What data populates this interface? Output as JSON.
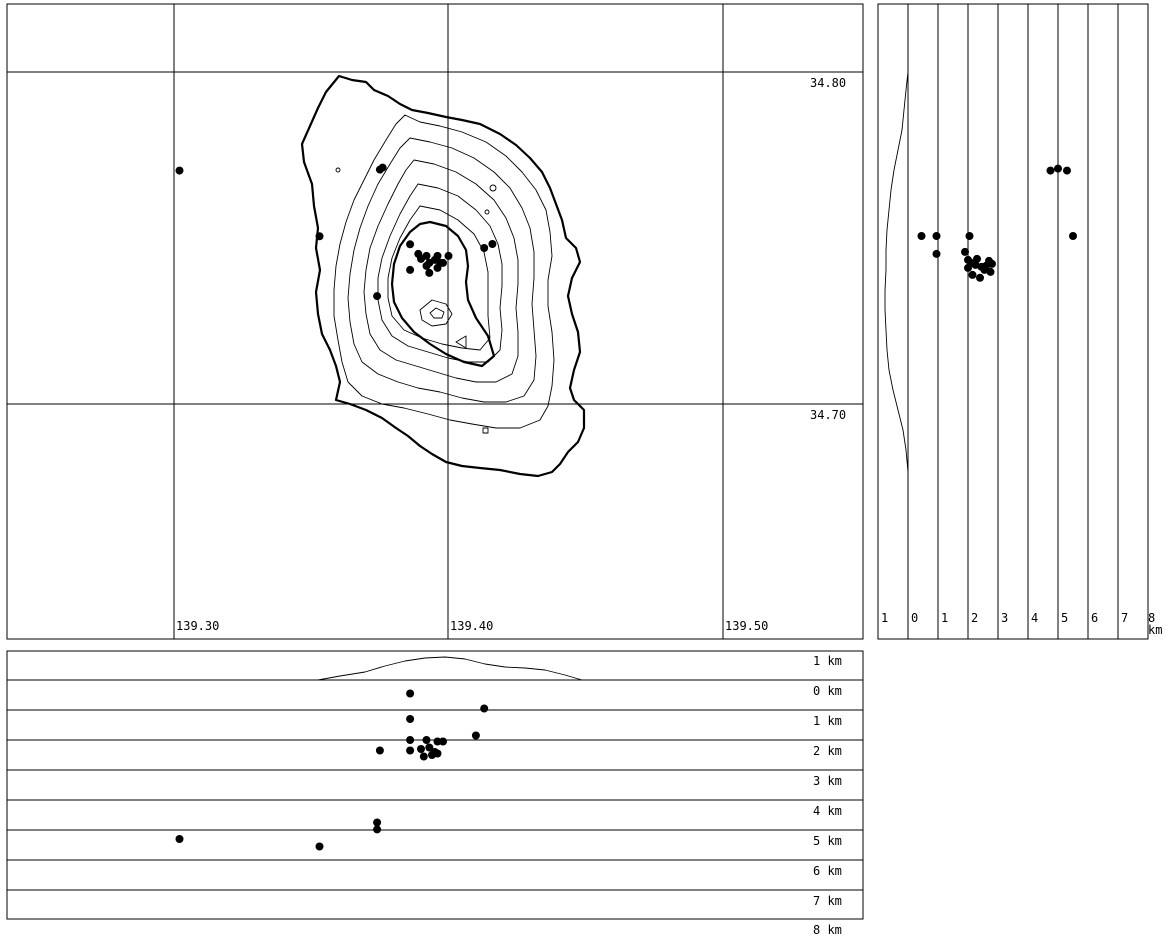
{
  "map": {
    "lat_labels": [
      "34.80",
      "34.70"
    ],
    "lon_labels": [
      "139.30",
      "139.40",
      "139.50"
    ],
    "epicenters": [
      {
        "lon": 139.302,
        "lat": 34.7703
      },
      {
        "lon": 139.353,
        "lat": 34.7505
      },
      {
        "lon": 139.375,
        "lat": 34.7706
      },
      {
        "lon": 139.376,
        "lat": 34.7712
      },
      {
        "lon": 139.386,
        "lat": 34.7481
      },
      {
        "lon": 139.386,
        "lat": 34.7404
      },
      {
        "lon": 139.389,
        "lat": 34.7452
      },
      {
        "lon": 139.39,
        "lat": 34.7437
      },
      {
        "lon": 139.392,
        "lat": 34.7416
      },
      {
        "lon": 139.393,
        "lat": 34.7425
      },
      {
        "lon": 139.395,
        "lat": 34.7434
      },
      {
        "lon": 139.396,
        "lat": 34.741
      },
      {
        "lon": 139.397,
        "lat": 34.7425
      },
      {
        "lon": 139.393,
        "lat": 34.7395
      },
      {
        "lon": 139.392,
        "lat": 34.7446
      },
      {
        "lon": 139.396,
        "lat": 34.7446
      },
      {
        "lon": 139.398,
        "lat": 34.7425
      },
      {
        "lon": 139.4,
        "lat": 34.7446
      },
      {
        "lon": 139.374,
        "lat": 34.7325
      },
      {
        "lon": 139.413,
        "lat": 34.747
      },
      {
        "lon": 139.416,
        "lat": 34.7482
      }
    ]
  },
  "ns_section": {
    "depth_labels": [
      "1",
      "0",
      "1",
      "2",
      "3",
      "4",
      "5",
      "6",
      "7",
      "8"
    ],
    "unit": "km",
    "hypocenters": [
      {
        "depth": 0.45,
        "lat": 34.7506
      },
      {
        "depth": 0.95,
        "lat": 34.7506
      },
      {
        "depth": 0.95,
        "lat": 34.7452
      },
      {
        "depth": 2.05,
        "lat": 34.7506
      },
      {
        "depth": 1.9,
        "lat": 34.7458
      },
      {
        "depth": 2.0,
        "lat": 34.7434
      },
      {
        "depth": 2.1,
        "lat": 34.7425
      },
      {
        "depth": 2.3,
        "lat": 34.7437
      },
      {
        "depth": 2.25,
        "lat": 34.7419
      },
      {
        "depth": 2.45,
        "lat": 34.7413
      },
      {
        "depth": 2.6,
        "lat": 34.7416
      },
      {
        "depth": 2.75,
        "lat": 34.7398
      },
      {
        "depth": 2.7,
        "lat": 34.7431
      },
      {
        "depth": 2.0,
        "lat": 34.741
      },
      {
        "depth": 2.15,
        "lat": 34.7389
      },
      {
        "depth": 2.4,
        "lat": 34.738
      },
      {
        "depth": 2.55,
        "lat": 34.7404
      },
      {
        "depth": 2.8,
        "lat": 34.7422
      },
      {
        "depth": 4.75,
        "lat": 34.7703
      },
      {
        "depth": 5.0,
        "lat": 34.7709
      },
      {
        "depth": 5.3,
        "lat": 34.7703
      },
      {
        "depth": 5.5,
        "lat": 34.7506
      }
    ]
  },
  "ew_section": {
    "depth_labels": [
      "1 km",
      "0 km",
      "1 km",
      "2 km",
      "3 km",
      "4 km",
      "5 km",
      "6 km",
      "7 km",
      "8 km"
    ],
    "hypocenters": [
      {
        "lon": 139.386,
        "depth": 0.45
      },
      {
        "lon": 139.413,
        "depth": 0.95
      },
      {
        "lon": 139.386,
        "depth": 1.3
      },
      {
        "lon": 139.41,
        "depth": 1.85
      },
      {
        "lon": 139.386,
        "depth": 2.0
      },
      {
        "lon": 139.392,
        "depth": 2.0
      },
      {
        "lon": 139.396,
        "depth": 2.05
      },
      {
        "lon": 139.398,
        "depth": 2.05
      },
      {
        "lon": 139.375,
        "depth": 2.35
      },
      {
        "lon": 139.386,
        "depth": 2.35
      },
      {
        "lon": 139.39,
        "depth": 2.3
      },
      {
        "lon": 139.393,
        "depth": 2.25
      },
      {
        "lon": 139.395,
        "depth": 2.4
      },
      {
        "lon": 139.391,
        "depth": 2.55
      },
      {
        "lon": 139.394,
        "depth": 2.5
      },
      {
        "lon": 139.396,
        "depth": 2.45
      },
      {
        "lon": 139.374,
        "depth": 4.75
      },
      {
        "lon": 139.374,
        "depth": 4.98
      },
      {
        "lon": 139.302,
        "depth": 5.3
      },
      {
        "lon": 139.353,
        "depth": 5.55
      }
    ]
  }
}
